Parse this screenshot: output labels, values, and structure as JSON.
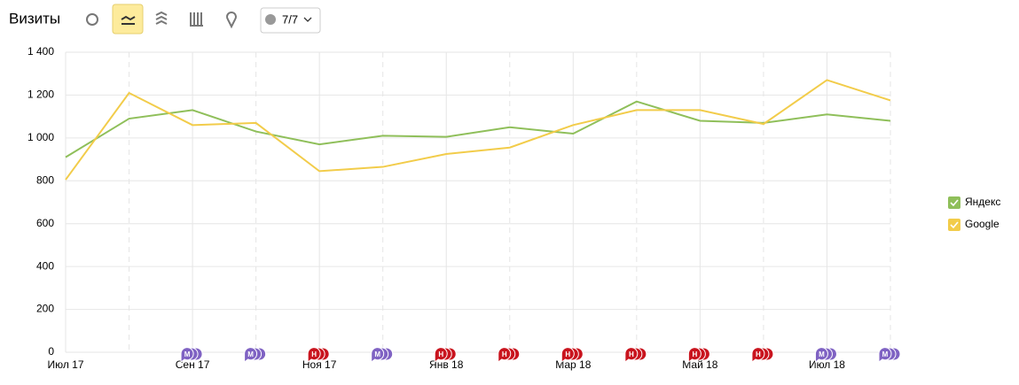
{
  "header": {
    "title": "Визиты",
    "comment_filter": "7/7"
  },
  "chart_data": {
    "type": "line",
    "categories": [
      "Июл 17",
      null,
      "Сен 17",
      null,
      "Ноя 17",
      null,
      "Янв 18",
      null,
      "Мар 18",
      null,
      "Май 18",
      null,
      "Июл 18",
      null
    ],
    "series": [
      {
        "name": "Яндекс",
        "color": "#8fbf5a",
        "values": [
          910,
          1090,
          1130,
          1030,
          970,
          1010,
          1005,
          1050,
          1020,
          1170,
          1080,
          1070,
          1110,
          1080
        ]
      },
      {
        "name": "Google",
        "color": "#f2cc4a",
        "values": [
          805,
          1210,
          1060,
          1070,
          845,
          865,
          925,
          955,
          1060,
          1130,
          1130,
          1065,
          1270,
          1175
        ]
      }
    ],
    "ylim": [
      0,
      1400
    ],
    "yticks": [
      0,
      200,
      400,
      600,
      800,
      {
        "value": 1000,
        "label": "1 000"
      },
      {
        "value": 1200,
        "label": "1 200"
      },
      {
        "value": 1400,
        "label": "1 400"
      }
    ],
    "grid": true,
    "legend": "right",
    "annotations": [
      null,
      null,
      "М",
      "М",
      "Н",
      "М",
      "Н",
      "Н",
      "Н",
      "Н",
      "Н",
      "Н",
      "М",
      "М"
    ]
  }
}
